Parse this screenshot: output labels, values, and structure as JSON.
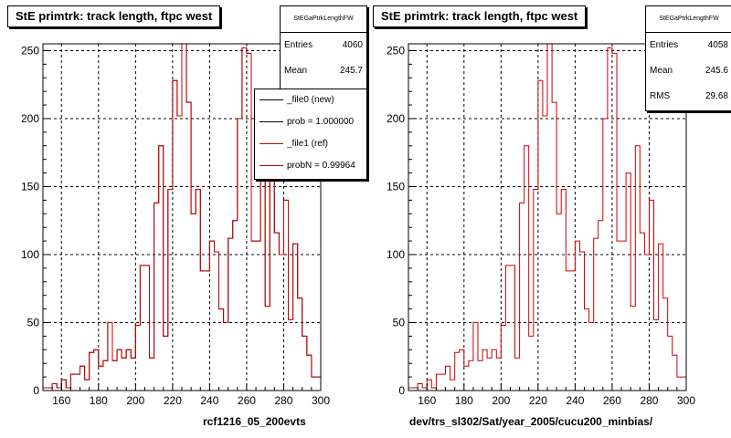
{
  "charts": [
    {
      "title": "StE primtrk: track length, ftpc west",
      "footer": "rcf1216_05_200evts",
      "stats": {
        "name": "StEGaPtrkLengthFW",
        "rows": [
          {
            "label": "Entries",
            "value": "4060"
          },
          {
            "label": "Mean",
            "value": "245.7"
          }
        ]
      },
      "legend": [
        {
          "label": "_file0 (new)",
          "color": "#000000"
        },
        {
          "label": "prob = 1.000000",
          "color": "#000000"
        },
        {
          "label": "_file1 (ref)",
          "color": "#cc0000"
        },
        {
          "label": "probN = 0.99964",
          "color": "#cc0000"
        }
      ]
    },
    {
      "title": "StE primtrk: track length, ftpc west",
      "footer": "dev/trs_sl302/Sat/year_2005/cucu200_minbias/",
      "stats": {
        "name": "StEGaPtrkLengthFW",
        "rows": [
          {
            "label": "Entries",
            "value": "4058"
          },
          {
            "label": "Mean",
            "value": "245.6"
          },
          {
            "label": "RMS",
            "value": "29.68"
          }
        ]
      },
      "legend": []
    }
  ],
  "chart_data": [
    {
      "type": "histogram",
      "title": "StE primtrk: track length, ftpc west",
      "xlim": [
        150,
        300
      ],
      "ylim": [
        0,
        255
      ],
      "xticks": [
        160,
        180,
        200,
        220,
        240,
        260,
        280,
        300
      ],
      "yticks": [
        0,
        50,
        100,
        150,
        200,
        250
      ],
      "grid": true,
      "bin_edges": [
        150,
        152.5,
        155,
        157.5,
        160,
        162.5,
        165,
        167.5,
        170,
        172.5,
        175,
        177.5,
        180,
        182.5,
        185,
        187.5,
        190,
        192.5,
        195,
        197.5,
        200,
        202.5,
        205,
        207.5,
        210,
        212.5,
        215,
        217.5,
        220,
        222.5,
        225,
        227.5,
        230,
        232.5,
        235,
        237.5,
        240,
        242.5,
        245,
        247.5,
        250,
        252.5,
        255,
        257.5,
        260,
        262.5,
        265,
        267.5,
        270,
        272.5,
        275,
        277.5,
        280,
        282.5,
        285,
        287.5,
        290,
        292.5,
        295,
        297.5,
        300
      ],
      "series": [
        {
          "name": "_file0 (new)",
          "color": "#000000",
          "values": [
            2,
            2,
            5,
            2,
            8,
            2,
            12,
            12,
            18,
            8,
            28,
            30,
            18,
            22,
            50,
            22,
            30,
            24,
            30,
            24,
            48,
            92,
            92,
            24,
            138,
            180,
            40,
            148,
            228,
            202,
            260,
            212,
            130,
            148,
            88,
            88,
            110,
            102,
            60,
            50,
            112,
            125,
            200,
            252,
            248,
            110,
            110,
            160,
            62,
            180,
            116,
            100,
            140,
            52,
            108,
            68,
            40,
            26,
            10,
            10
          ]
        },
        {
          "name": "_file1 (ref)",
          "color": "#cc0000",
          "values": [
            2,
            2,
            5,
            2,
            8,
            2,
            12,
            12,
            18,
            8,
            28,
            30,
            18,
            22,
            50,
            22,
            30,
            24,
            30,
            24,
            48,
            92,
            92,
            24,
            138,
            180,
            40,
            148,
            228,
            202,
            260,
            212,
            130,
            148,
            88,
            88,
            110,
            102,
            60,
            50,
            112,
            125,
            200,
            252,
            248,
            110,
            110,
            160,
            62,
            180,
            116,
            100,
            140,
            52,
            108,
            68,
            40,
            26,
            10,
            10
          ]
        }
      ]
    },
    {
      "type": "histogram",
      "title": "StE primtrk: track length, ftpc west",
      "xlim": [
        150,
        300
      ],
      "ylim": [
        0,
        255
      ],
      "xticks": [
        160,
        180,
        200,
        220,
        240,
        260,
        280,
        300
      ],
      "yticks": [
        0,
        50,
        100,
        150,
        200,
        250
      ],
      "grid": true,
      "bin_edges": [
        150,
        152.5,
        155,
        157.5,
        160,
        162.5,
        165,
        167.5,
        170,
        172.5,
        175,
        177.5,
        180,
        182.5,
        185,
        187.5,
        190,
        192.5,
        195,
        197.5,
        200,
        202.5,
        205,
        207.5,
        210,
        212.5,
        215,
        217.5,
        220,
        222.5,
        225,
        227.5,
        230,
        232.5,
        235,
        237.5,
        240,
        242.5,
        245,
        247.5,
        250,
        252.5,
        255,
        257.5,
        260,
        262.5,
        265,
        267.5,
        270,
        272.5,
        275,
        277.5,
        280,
        282.5,
        285,
        287.5,
        290,
        292.5,
        295,
        297.5,
        300
      ],
      "series": [
        {
          "name": "_file1 (ref)",
          "color": "#cc0000",
          "values": [
            2,
            2,
            5,
            2,
            8,
            2,
            12,
            12,
            18,
            8,
            28,
            30,
            18,
            22,
            50,
            22,
            30,
            24,
            30,
            24,
            48,
            92,
            92,
            24,
            138,
            180,
            40,
            148,
            228,
            202,
            260,
            212,
            130,
            148,
            88,
            88,
            110,
            102,
            60,
            50,
            112,
            125,
            200,
            252,
            248,
            110,
            110,
            160,
            62,
            180,
            116,
            100,
            140,
            52,
            108,
            68,
            40,
            26,
            10,
            10
          ]
        }
      ]
    }
  ]
}
